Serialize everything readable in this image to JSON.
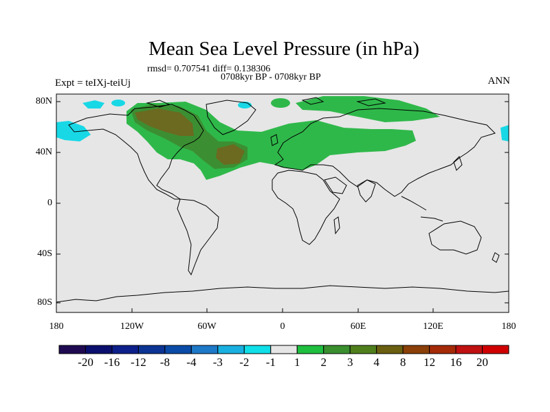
{
  "title": "Mean Sea Level Pressure (in hPa)",
  "stats_line": "rmsd= 0.707541 diff= 0.138306",
  "period_line": "0708kyr BP - 0708kyr BP",
  "expt_line": "Expt = teIXj-teiUj",
  "season": "ANN",
  "lat_labels": [
    "80N",
    "40N",
    "0",
    "40S",
    "80S"
  ],
  "lon_labels": [
    "180",
    "120W",
    "60W",
    "0",
    "60E",
    "120E",
    "180"
  ],
  "colorbar": {
    "labels": [
      "-20",
      "-16",
      "-12",
      "-8",
      "-4",
      "-3",
      "-2",
      "-1",
      "1",
      "2",
      "3",
      "4",
      "8",
      "12",
      "16",
      "20"
    ],
    "colors": [
      "#1f0a52",
      "#0a0f6e",
      "#0d1f8a",
      "#0b3494",
      "#0a4ba8",
      "#1e79c8",
      "#18b0e0",
      "#0fdfe8",
      "#e6e6e6",
      "#1fbf3f",
      "#3a8f2f",
      "#4f7f1c",
      "#6a5f10",
      "#8a4008",
      "#a52a08",
      "#c01010",
      "#d00000"
    ]
  },
  "colors": {
    "map_background": "#e6e6e6",
    "positive_1_2": "#2fb84a",
    "positive_2_3": "#3b8f32",
    "positive_3_4": "#6b6a20",
    "negative_2_1": "#18d8e6"
  }
}
